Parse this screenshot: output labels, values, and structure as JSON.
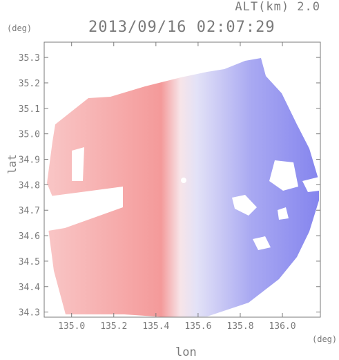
{
  "chart_data": {
    "type": "heatmap",
    "title": "2013/09/16 02:07:29",
    "subtitle": "ALT(km) 2.0",
    "xlabel": "lon",
    "ylabel": "lat",
    "x_unit": "(deg)",
    "y_unit": "(deg)",
    "xlim": [
      134.87,
      136.18
    ],
    "ylim": [
      34.28,
      35.36
    ],
    "x_ticks": [
      135.0,
      135.2,
      135.4,
      135.6,
      135.8,
      136.0
    ],
    "x_tick_labels": [
      "135.0",
      "135.2",
      "135.4",
      "135.6",
      "135.8",
      "136.0"
    ],
    "y_ticks": [
      34.3,
      34.4,
      34.5,
      34.6,
      34.7,
      34.8,
      34.9,
      35.0,
      35.1,
      35.2,
      35.3
    ],
    "y_tick_labels": [
      "34.3",
      "34.4",
      "34.5",
      "34.6",
      "34.7",
      "34.8",
      "34.9",
      "35.0",
      "35.1",
      "35.2",
      "35.3"
    ],
    "radar_center": {
      "lon": 135.52,
      "lat": 34.82
    },
    "field_description": "Doppler radial velocity, red = away (west half), blue = toward (east half)",
    "colors": {
      "away": "#f08a8a",
      "toward": "#8a8af2",
      "neutral": "#f4f2fa",
      "axis": "#7a7a7a"
    },
    "grid": false
  }
}
